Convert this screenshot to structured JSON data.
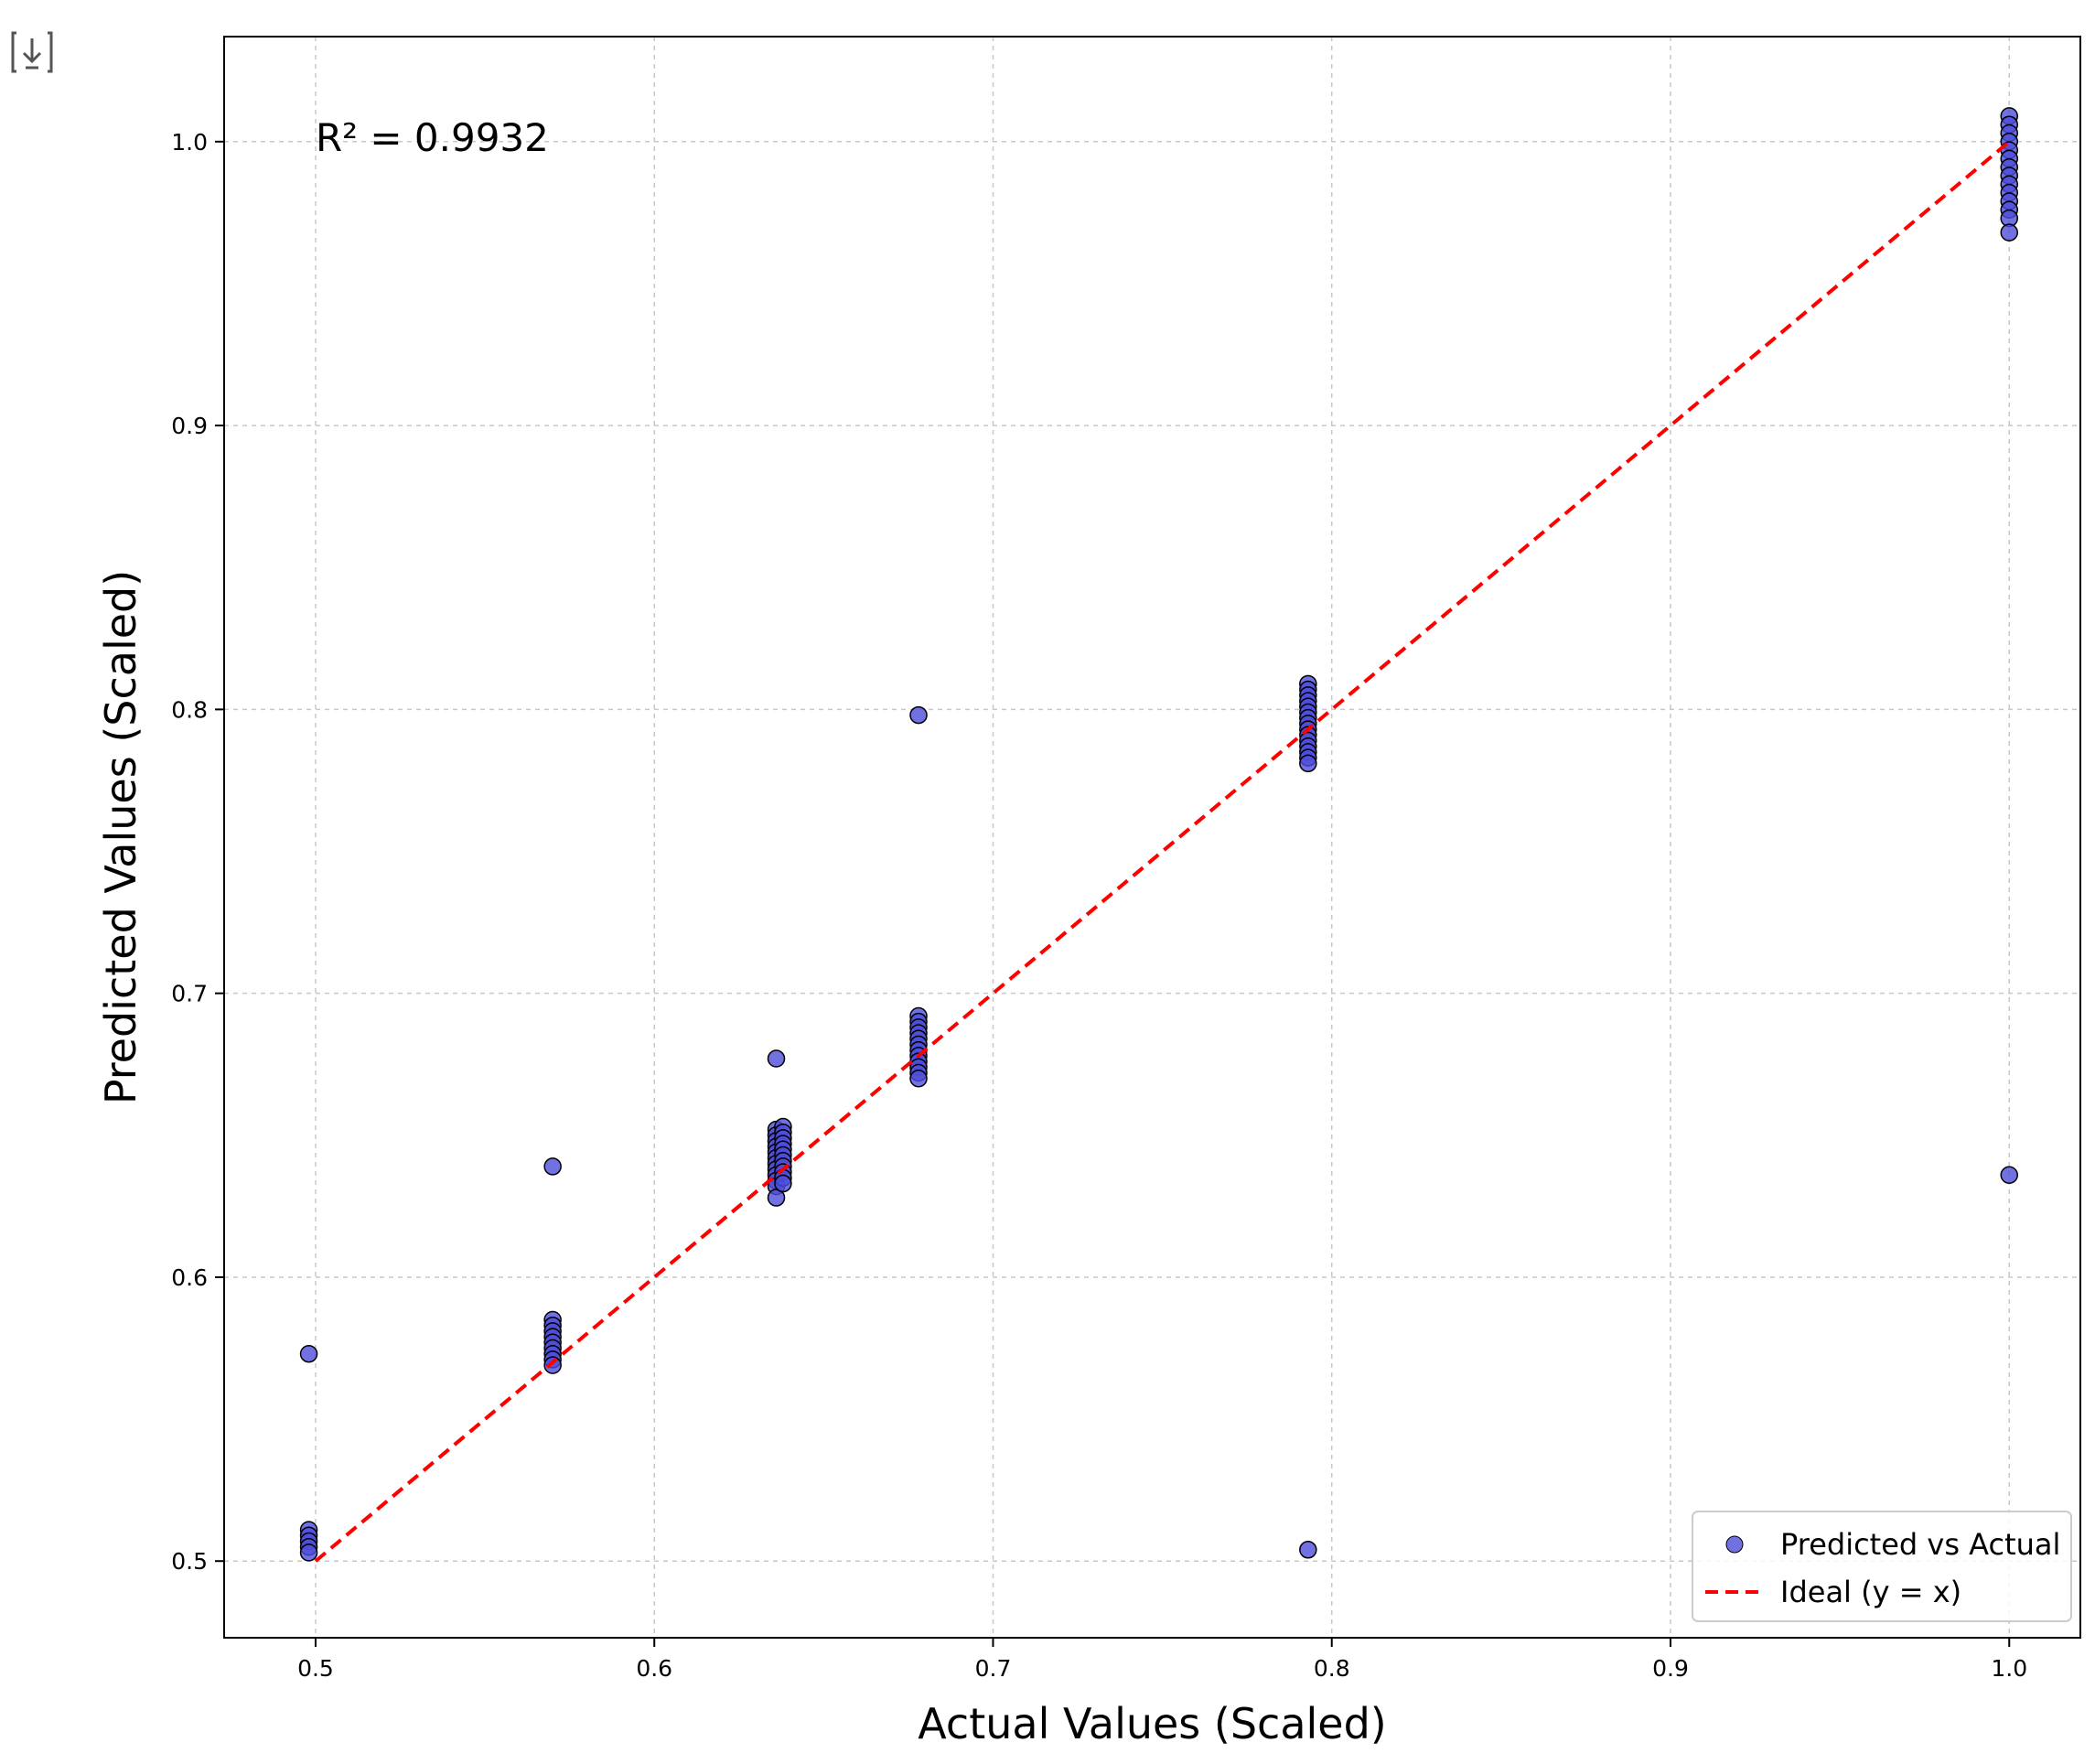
{
  "chart_data": {
    "type": "scatter",
    "xlabel": "Actual Values (Scaled)",
    "ylabel": "Predicted Values (Scaled)",
    "xlim": [
      0.473,
      1.021
    ],
    "ylim": [
      0.473,
      1.037
    ],
    "xticks": [
      0.5,
      0.6,
      0.7,
      0.8,
      0.9,
      1.0
    ],
    "yticks": [
      0.5,
      0.6,
      0.7,
      0.8,
      0.9,
      1.0
    ],
    "xtick_labels": [
      "0.5",
      "0.6",
      "0.7",
      "0.8",
      "0.9",
      "1.0"
    ],
    "ytick_labels": [
      "0.5",
      "0.6",
      "0.7",
      "0.8",
      "0.9",
      "1.0"
    ],
    "grid": true,
    "legend_position": "bottom-right",
    "annotation": "R² = 0.9932",
    "series": [
      {
        "name": "Predicted vs Actual",
        "kind": "scatter",
        "color": "#4d4ddb",
        "edge_color": "#000000",
        "points": [
          [
            0.498,
            0.511
          ],
          [
            0.498,
            0.509
          ],
          [
            0.498,
            0.507
          ],
          [
            0.498,
            0.505
          ],
          [
            0.498,
            0.503
          ],
          [
            0.498,
            0.573
          ],
          [
            0.57,
            0.585
          ],
          [
            0.57,
            0.583
          ],
          [
            0.57,
            0.581
          ],
          [
            0.57,
            0.579
          ],
          [
            0.57,
            0.577
          ],
          [
            0.57,
            0.575
          ],
          [
            0.57,
            0.573
          ],
          [
            0.57,
            0.571
          ],
          [
            0.57,
            0.569
          ],
          [
            0.57,
            0.639
          ],
          [
            0.636,
            0.652
          ],
          [
            0.636,
            0.65
          ],
          [
            0.636,
            0.648
          ],
          [
            0.636,
            0.646
          ],
          [
            0.636,
            0.644
          ],
          [
            0.636,
            0.642
          ],
          [
            0.636,
            0.64
          ],
          [
            0.636,
            0.638
          ],
          [
            0.636,
            0.636
          ],
          [
            0.636,
            0.634
          ],
          [
            0.636,
            0.632
          ],
          [
            0.636,
            0.628
          ],
          [
            0.636,
            0.677
          ],
          [
            0.638,
            0.653
          ],
          [
            0.638,
            0.651
          ],
          [
            0.638,
            0.649
          ],
          [
            0.638,
            0.647
          ],
          [
            0.638,
            0.645
          ],
          [
            0.638,
            0.643
          ],
          [
            0.638,
            0.641
          ],
          [
            0.638,
            0.639
          ],
          [
            0.638,
            0.637
          ],
          [
            0.638,
            0.635
          ],
          [
            0.638,
            0.633
          ],
          [
            0.678,
            0.692
          ],
          [
            0.678,
            0.69
          ],
          [
            0.678,
            0.688
          ],
          [
            0.678,
            0.686
          ],
          [
            0.678,
            0.684
          ],
          [
            0.678,
            0.682
          ],
          [
            0.678,
            0.68
          ],
          [
            0.678,
            0.678
          ],
          [
            0.678,
            0.676
          ],
          [
            0.678,
            0.674
          ],
          [
            0.678,
            0.672
          ],
          [
            0.678,
            0.67
          ],
          [
            0.678,
            0.798
          ],
          [
            0.793,
            0.809
          ],
          [
            0.793,
            0.807
          ],
          [
            0.793,
            0.805
          ],
          [
            0.793,
            0.803
          ],
          [
            0.793,
            0.801
          ],
          [
            0.793,
            0.799
          ],
          [
            0.793,
            0.797
          ],
          [
            0.793,
            0.795
          ],
          [
            0.793,
            0.793
          ],
          [
            0.793,
            0.791
          ],
          [
            0.793,
            0.789
          ],
          [
            0.793,
            0.787
          ],
          [
            0.793,
            0.785
          ],
          [
            0.793,
            0.783
          ],
          [
            0.793,
            0.781
          ],
          [
            0.793,
            0.504
          ],
          [
            1.0,
            1.009
          ],
          [
            1.0,
            1.006
          ],
          [
            1.0,
            1.003
          ],
          [
            1.0,
            1.0
          ],
          [
            1.0,
            0.997
          ],
          [
            1.0,
            0.994
          ],
          [
            1.0,
            0.991
          ],
          [
            1.0,
            0.988
          ],
          [
            1.0,
            0.985
          ],
          [
            1.0,
            0.982
          ],
          [
            1.0,
            0.979
          ],
          [
            1.0,
            0.976
          ],
          [
            1.0,
            0.973
          ],
          [
            1.0,
            0.968
          ],
          [
            1.0,
            0.636
          ]
        ]
      },
      {
        "name": "Ideal (y = x)",
        "kind": "line",
        "style": "dashed",
        "color": "#ff0000",
        "x": [
          0.5,
          1.0
        ],
        "y": [
          0.5,
          1.0
        ]
      }
    ]
  }
}
